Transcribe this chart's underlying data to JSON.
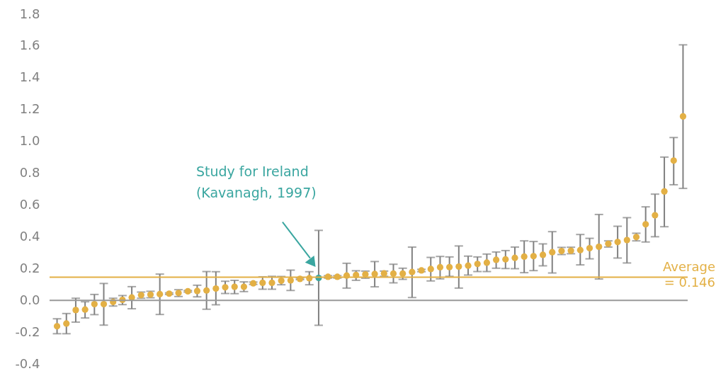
{
  "chart_data": {
    "type": "scatter",
    "marker": "circle",
    "tick_labels": "y",
    "grid": false,
    "categories": [
      null,
      null,
      null,
      null,
      null,
      null,
      null,
      null,
      null,
      null,
      null,
      null,
      null,
      null,
      null,
      null,
      null,
      null,
      null,
      null,
      null,
      null,
      null,
      null,
      null,
      null,
      null,
      null,
      null,
      null,
      null,
      null,
      null,
      null,
      null,
      null,
      null,
      null,
      null,
      null,
      null,
      null,
      null,
      null,
      null,
      null,
      null,
      null,
      null,
      null,
      null,
      null,
      null,
      null,
      null,
      null,
      null,
      null,
      null,
      null,
      null,
      null,
      null,
      null,
      null,
      null,
      null,
      null
    ],
    "ylim": [
      -0.4,
      1.8
    ],
    "yticks": [
      -0.4,
      -0.2,
      {
        "value": 0,
        "label": "0.0"
      },
      0.2,
      0.4,
      0.6,
      0.8,
      {
        "value": 1,
        "label": "1.0"
      },
      1.2,
      1.4,
      1.6,
      1.8
    ],
    "series": [
      {
        "values": [
          -0.163,
          -0.146,
          -0.061,
          -0.058,
          -0.024,
          -0.024,
          -0.01,
          0.003,
          0.018,
          0.033,
          0.036,
          0.039,
          0.042,
          0.046,
          0.057,
          0.059,
          0.062,
          0.074,
          0.082,
          0.085,
          0.085,
          0.107,
          0.11,
          0.11,
          0.123,
          0.126,
          0.135,
          0.139,
          0.141,
          0.148,
          0.148,
          0.156,
          0.159,
          0.163,
          0.166,
          0.169,
          0.168,
          0.168,
          0.178,
          0.188,
          0.197,
          0.208,
          0.209,
          0.212,
          0.218,
          0.229,
          0.237,
          0.255,
          0.258,
          0.267,
          0.275,
          0.278,
          0.286,
          0.303,
          0.31,
          0.312,
          0.316,
          0.328,
          0.337,
          0.356,
          0.367,
          0.379,
          0.398,
          0.478,
          0.535,
          0.685,
          0.879,
          1.157
        ],
        "colors": [
          "#e3b045",
          "#e3b045",
          "#e3b045",
          "#e3b045",
          "#e3b045",
          "#e3b045",
          "#e3b045",
          "#e3b045",
          "#e3b045",
          "#e3b045",
          "#e3b045",
          "#e3b045",
          "#e3b045",
          "#e3b045",
          "#e3b045",
          "#e3b045",
          "#e3b045",
          "#e3b045",
          "#e3b045",
          "#e3b045",
          "#e3b045",
          "#e3b045",
          "#e3b045",
          "#e3b045",
          "#e3b045",
          "#e3b045",
          "#e3b045",
          "#e3b045",
          "#3aa6a0",
          "#e3b045",
          "#e3b045",
          "#e3b045",
          "#e3b045",
          "#e3b045",
          "#e3b045",
          "#e3b045",
          "#e3b045",
          "#e3b045",
          "#e3b045",
          "#e3b045",
          "#e3b045",
          "#e3b045",
          "#e3b045",
          "#e3b045",
          "#e3b045",
          "#e3b045",
          "#e3b045",
          "#e3b045",
          "#e3b045",
          "#e3b045",
          "#e3b045",
          "#e3b045",
          "#e3b045",
          "#e3b045",
          "#e3b045",
          "#e3b045",
          "#e3b045",
          "#e3b045",
          "#e3b045",
          "#e3b045",
          "#e3b045",
          "#e3b045",
          "#e3b045",
          "#e3b045",
          "#e3b045",
          "#e3b045",
          "#e3b045",
          "#e3b045"
        ],
        "errors": [
          [
            -0.21,
            -0.116
          ],
          [
            -0.21,
            -0.083
          ],
          [
            -0.137,
            0.013
          ],
          [
            -0.111,
            -0.009
          ],
          [
            -0.09,
            0.037
          ],
          [
            -0.156,
            0.106
          ],
          [
            -0.036,
            0.013
          ],
          [
            -0.027,
            0.03
          ],
          [
            -0.053,
            0.086
          ],
          [
            0.013,
            0.052
          ],
          [
            0.016,
            0.057
          ],
          [
            -0.089,
            0.165
          ],
          [
            0.037,
            0.047
          ],
          [
            0.024,
            0.067
          ],
          [
            0.052,
            0.062
          ],
          [
            0.022,
            0.095
          ],
          [
            -0.056,
            0.181
          ],
          [
            -0.028,
            0.18
          ],
          [
            0.043,
            0.12
          ],
          [
            0.042,
            0.126
          ],
          [
            0.055,
            0.116
          ],
          [
            0.1,
            0.115
          ],
          [
            0.07,
            0.148
          ],
          [
            0.07,
            0.151
          ],
          [
            0.098,
            0.15
          ],
          [
            0.062,
            0.19
          ],
          [
            0.13,
            0.14
          ],
          [
            0.098,
            0.18
          ],
          [
            -0.157,
            0.44
          ],
          [
            0.14,
            0.155
          ],
          [
            0.14,
            0.155
          ],
          [
            0.077,
            0.233
          ],
          [
            0.126,
            0.186
          ],
          [
            0.139,
            0.184
          ],
          [
            0.085,
            0.244
          ],
          [
            0.151,
            0.184
          ],
          [
            0.11,
            0.227
          ],
          [
            0.132,
            0.202
          ],
          [
            0.018,
            0.335
          ],
          [
            0.18,
            0.195
          ],
          [
            0.122,
            0.27
          ],
          [
            0.135,
            0.276
          ],
          [
            0.151,
            0.273
          ],
          [
            0.077,
            0.342
          ],
          [
            0.159,
            0.278
          ],
          [
            0.181,
            0.273
          ],
          [
            0.181,
            0.291
          ],
          [
            0.202,
            0.304
          ],
          [
            0.2,
            0.313
          ],
          [
            0.199,
            0.335
          ],
          [
            0.174,
            0.374
          ],
          [
            0.187,
            0.37
          ],
          [
            0.217,
            0.355
          ],
          [
            0.172,
            0.432
          ],
          [
            0.288,
            0.333
          ],
          [
            0.293,
            0.334
          ],
          [
            0.223,
            0.414
          ],
          [
            0.261,
            0.39
          ],
          [
            0.134,
            0.54
          ],
          [
            0.335,
            0.374
          ],
          [
            0.266,
            0.466
          ],
          [
            0.235,
            0.52
          ],
          [
            0.374,
            0.422
          ],
          [
            0.367,
            0.588
          ],
          [
            0.4,
            0.668
          ],
          [
            0.463,
            0.901
          ],
          [
            0.727,
            1.024
          ],
          [
            0.704,
            1.607
          ]
        ]
      }
    ],
    "ref_lines": [
      {
        "axis": "y",
        "value": 0,
        "label": null,
        "color": "#999999"
      },
      {
        "axis": "y",
        "value": 0.146,
        "label": "Average\n= 0.146",
        "color": "#e3b045"
      }
    ],
    "annotations": [
      "Study for Ireland\n(Kavanagh, 1997)"
    ]
  }
}
